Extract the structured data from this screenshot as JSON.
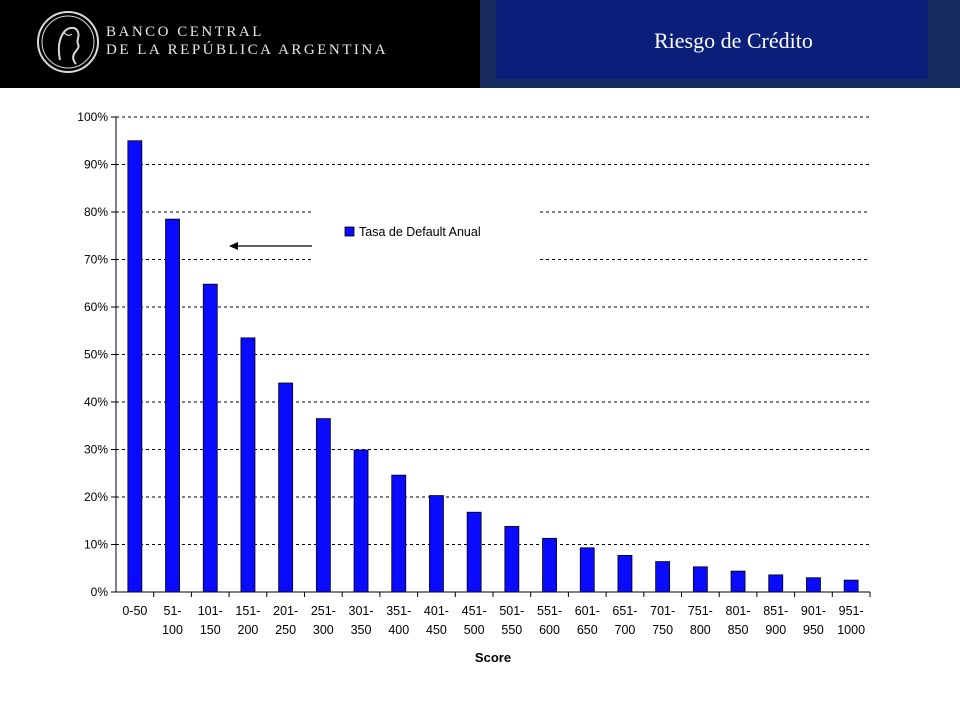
{
  "header": {
    "bank_line1": "BANCO CENTRAL",
    "bank_line2": "DE LA REPÚBLICA ARGENTINA",
    "slide_title": "Riesgo de Crédito",
    "colors": {
      "left_bg": "#000000",
      "right_bg": "#162a5e",
      "title_box": "#0a1f7a"
    }
  },
  "chart_data": {
    "type": "bar",
    "title": "",
    "xlabel": "Score",
    "ylabel": "",
    "ylim": [
      0,
      100
    ],
    "yticks": [
      "0%",
      "10%",
      "20%",
      "30%",
      "40%",
      "50%",
      "60%",
      "70%",
      "80%",
      "90%",
      "100%"
    ],
    "grid": "horizontal-dashed",
    "legend_position": "top-center",
    "bar_color": "#0a0aff",
    "categories": [
      [
        "0-50",
        ""
      ],
      [
        "51-",
        "100"
      ],
      [
        "101-",
        "150"
      ],
      [
        "151-",
        "200"
      ],
      [
        "201-",
        "250"
      ],
      [
        "251-",
        "300"
      ],
      [
        "301-",
        "350"
      ],
      [
        "351-",
        "400"
      ],
      [
        "401-",
        "450"
      ],
      [
        "451-",
        "500"
      ],
      [
        "501-",
        "550"
      ],
      [
        "551-",
        "600"
      ],
      [
        "601-",
        "650"
      ],
      [
        "651-",
        "700"
      ],
      [
        "701-",
        "750"
      ],
      [
        "751-",
        "800"
      ],
      [
        "801-",
        "850"
      ],
      [
        "851-",
        "900"
      ],
      [
        "901-",
        "950"
      ],
      [
        "951-",
        "1000"
      ]
    ],
    "series": [
      {
        "name": "Tasa de Default Anual",
        "values": [
          95,
          78.5,
          64.8,
          53.5,
          44,
          36.5,
          29.9,
          24.6,
          20.3,
          16.8,
          13.8,
          11.3,
          9.3,
          7.7,
          6.4,
          5.3,
          4.4,
          3.6,
          3.0,
          2.5
        ]
      }
    ]
  }
}
